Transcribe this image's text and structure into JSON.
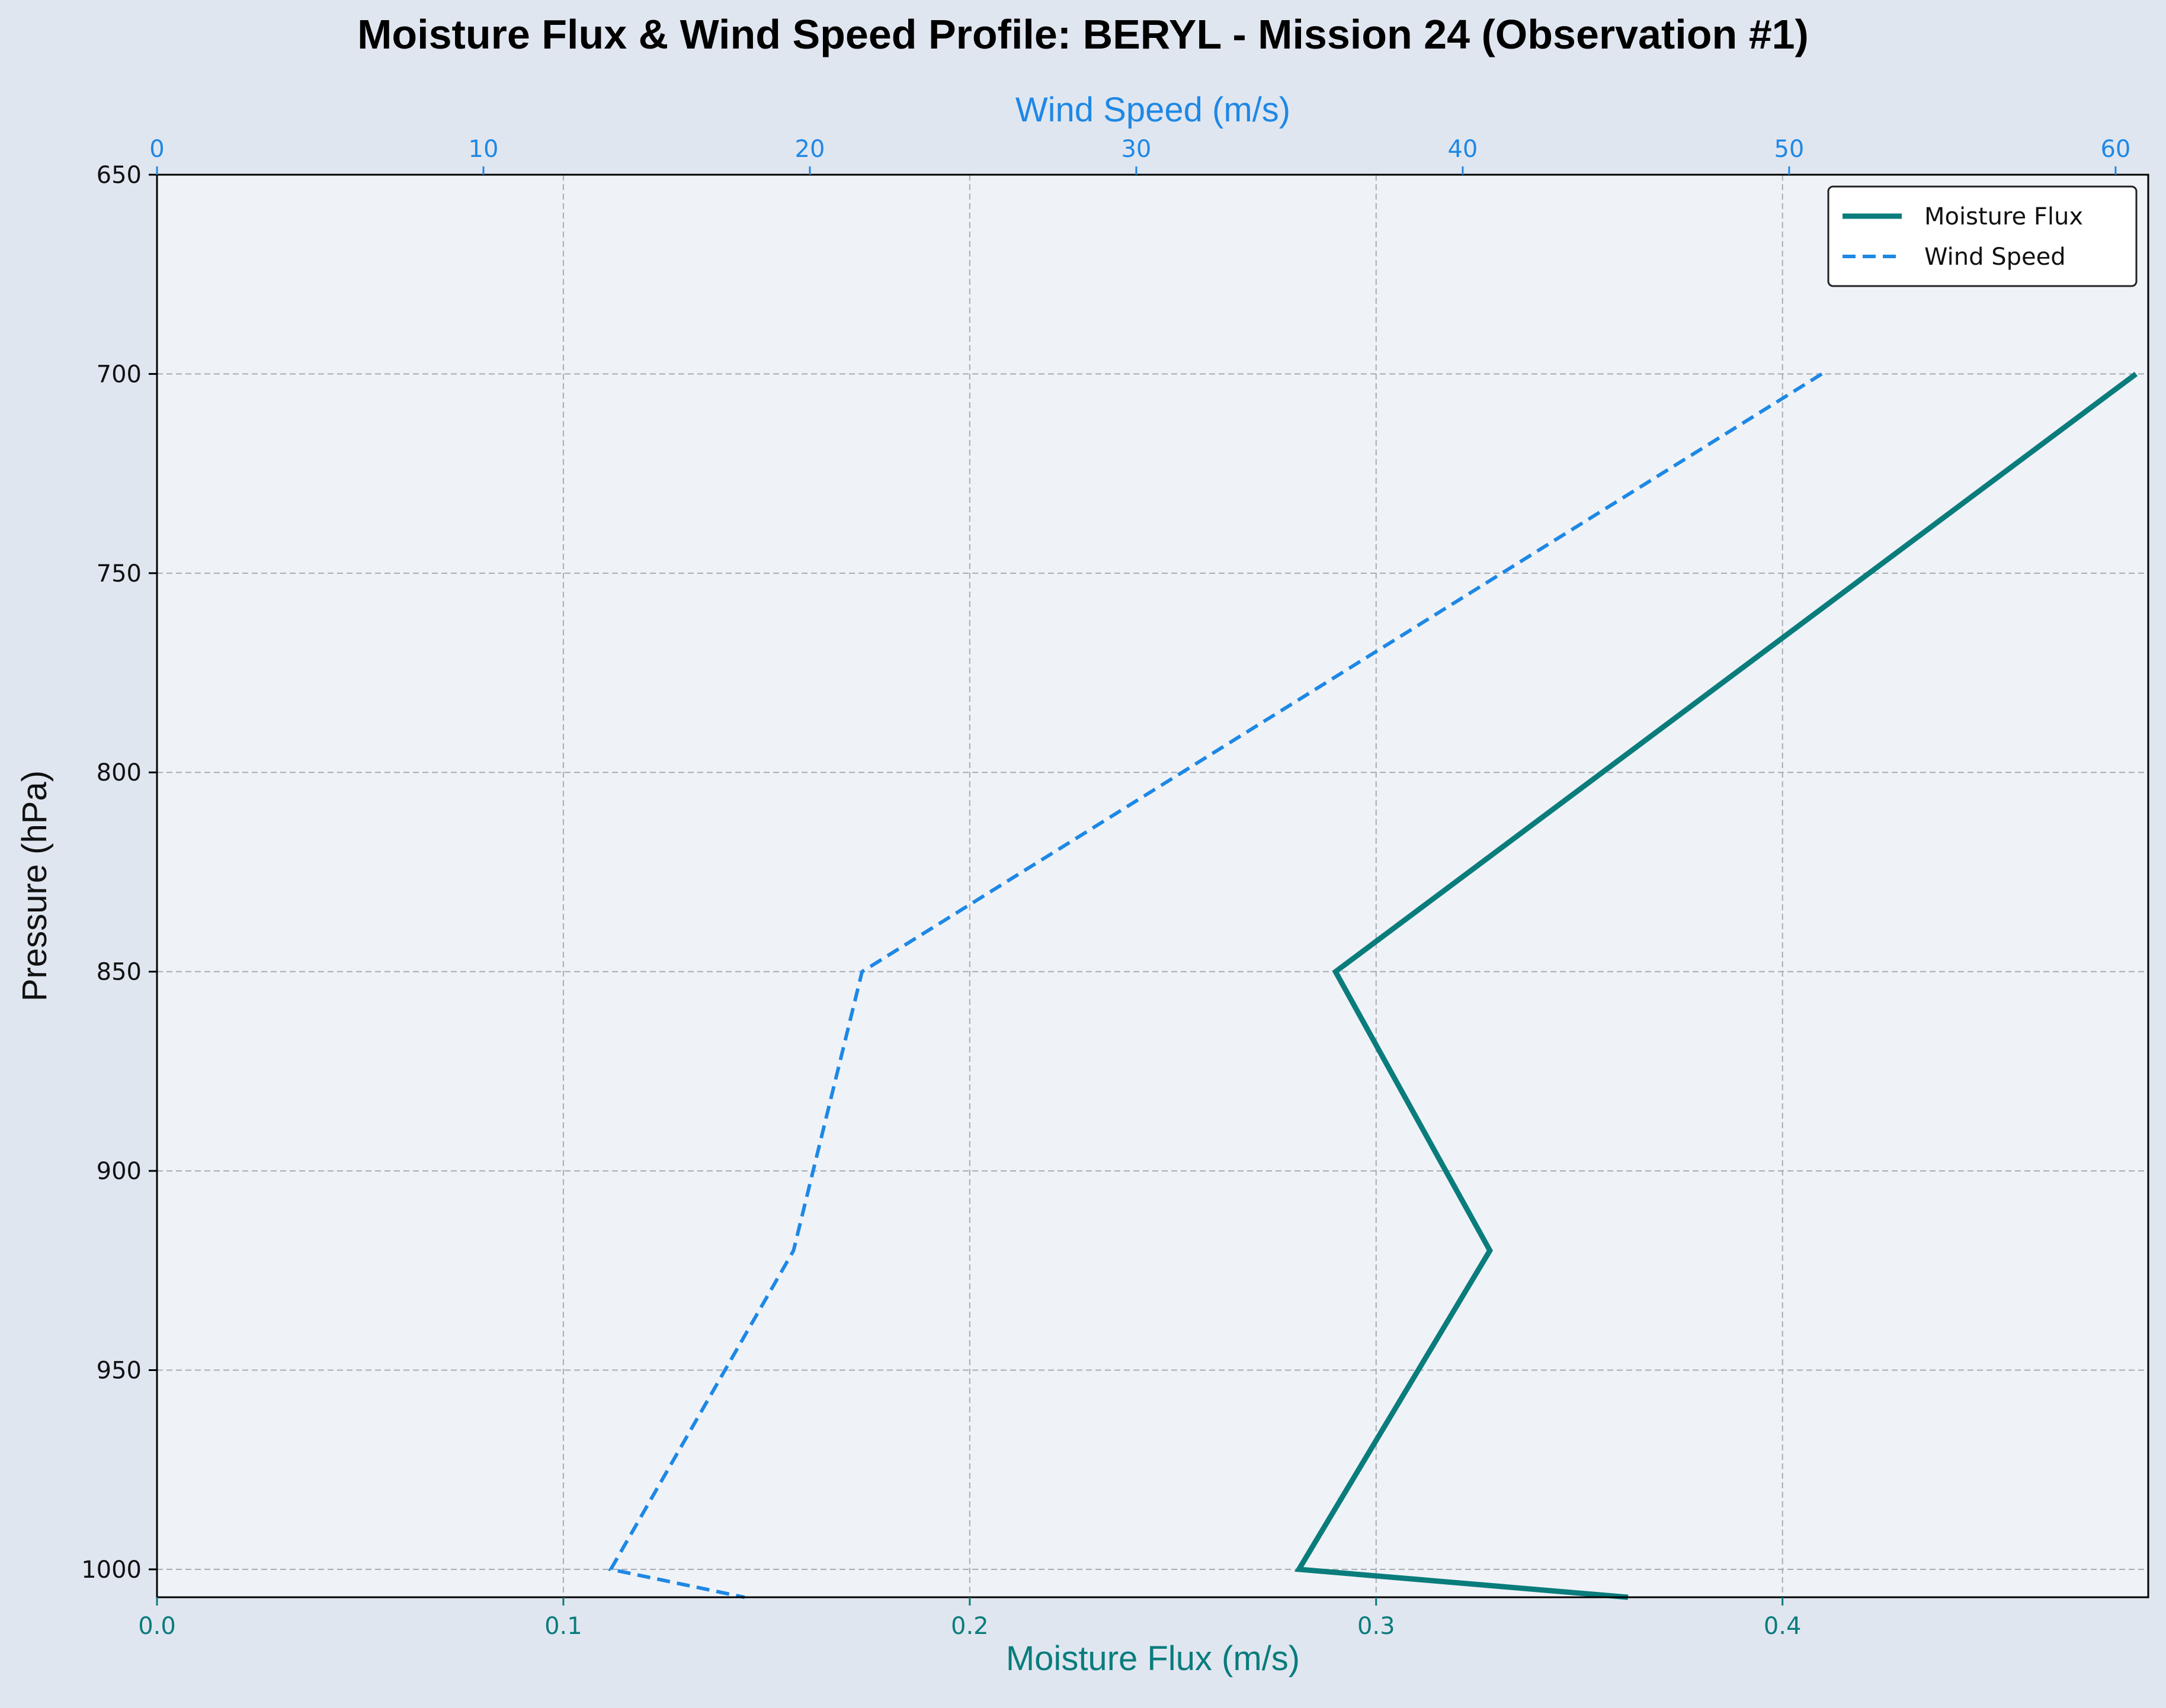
{
  "colors": {
    "figure_bg": "#e0e6f0",
    "plot_bg": "#eff3f8",
    "moisture": "#0a7c7c",
    "wind": "#1e88e5",
    "grid": "#a8acb3"
  },
  "chart_data": {
    "type": "line",
    "title": "Moisture Flux & Wind Speed Profile: BERYL - Mission 24 (Observation #1)",
    "ylabel": "Pressure (hPa)",
    "xlabel_bottom": "Moisture Flux (m/s)",
    "xlabel_top": "Wind Speed (m/s)",
    "y_inverted": true,
    "ylim": [
      650,
      1007
    ],
    "xlim_bottom": [
      0.0,
      0.49
    ],
    "xlim_top": [
      0,
      61
    ],
    "y_ticks": [
      650,
      700,
      750,
      800,
      850,
      900,
      950,
      1000
    ],
    "x_ticks_bottom": [
      0.0,
      0.1,
      0.2,
      0.3,
      0.4
    ],
    "x_ticks_top": [
      0,
      10,
      20,
      30,
      40,
      50,
      60
    ],
    "y_tick_labels": [
      "650",
      "700",
      "750",
      "800",
      "850",
      "900",
      "950",
      "1000"
    ],
    "x_tick_labels_bottom": [
      "0.0",
      "0.1",
      "0.2",
      "0.3",
      "0.4"
    ],
    "x_tick_labels_top": [
      "0",
      "10",
      "20",
      "30",
      "40",
      "50",
      "60"
    ],
    "grid": true,
    "legend_position": "top-right",
    "series": [
      {
        "name": "Moisture Flux",
        "axis": "bottom",
        "style": "solid",
        "pressure": [
          700,
          850,
          920,
          1000,
          1007
        ],
        "values": [
          0.487,
          0.29,
          0.328,
          0.281,
          0.362
        ]
      },
      {
        "name": "Wind Speed",
        "axis": "top",
        "style": "dashed",
        "pressure": [
          700,
          850,
          920,
          1000,
          1007
        ],
        "values": [
          51.0,
          21.6,
          19.5,
          13.9,
          18.0
        ]
      }
    ]
  }
}
